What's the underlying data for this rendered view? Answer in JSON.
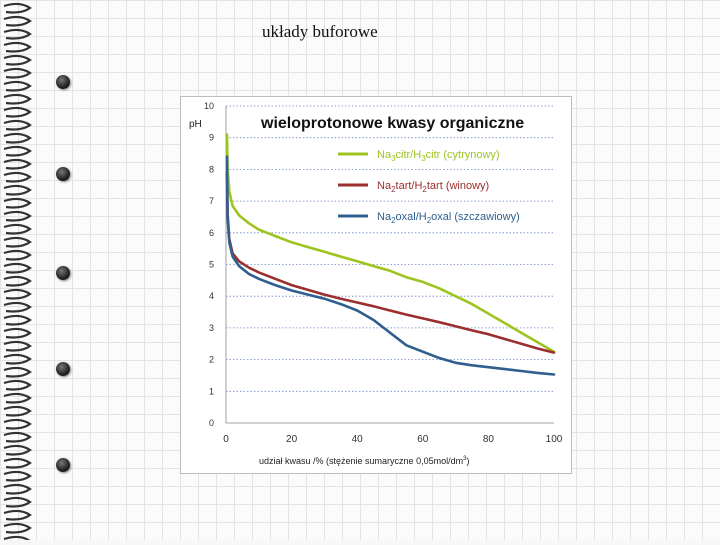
{
  "slide": {
    "title": "układy buforowe"
  },
  "icons": [
    "spiral-binding-icon",
    "bullet-point-icon"
  ],
  "colors": {
    "citrate": "#9dc41f",
    "tartrate": "#9b2f2f",
    "oxalate": "#2f5f8f",
    "gridline": "#6b85c8"
  },
  "chart_data": {
    "type": "line",
    "title": "wieloprotonowe kwasy organiczne",
    "ylabel": "pH",
    "xlabel_prefix": "udział kwasu /% (stężenie sumaryczne 0,05mol/dm",
    "xlabel_superscript": "3",
    "xlabel_suffix": ")",
    "xlim": [
      0,
      100
    ],
    "ylim": [
      0,
      10
    ],
    "xticks": [
      "0",
      "20",
      "40",
      "60",
      "80",
      "100"
    ],
    "yticks": [
      "0",
      "1",
      "2",
      "3",
      "4",
      "5",
      "6",
      "7",
      "8",
      "9",
      "10"
    ],
    "grid": "horizontal-dotted",
    "legend_position": "top-right",
    "series": [
      {
        "name_parts": [
          [
            "Na",
            false
          ],
          [
            "3",
            true
          ],
          [
            "citr/H",
            false
          ],
          [
            "3",
            true
          ],
          [
            "citr (cytrynowy)",
            false
          ]
        ],
        "color_key": "citrate",
        "x": [
          0.3,
          0.5,
          1,
          2,
          4,
          7,
          10,
          15,
          20,
          25,
          30,
          35,
          40,
          45,
          50,
          55,
          60,
          65,
          70,
          75,
          80,
          85,
          90,
          95,
          100
        ],
        "y": [
          9.1,
          8.0,
          7.3,
          6.85,
          6.55,
          6.3,
          6.1,
          5.9,
          5.7,
          5.55,
          5.4,
          5.25,
          5.1,
          4.95,
          4.8,
          4.6,
          4.45,
          4.25,
          4.0,
          3.75,
          3.45,
          3.15,
          2.85,
          2.55,
          2.25
        ]
      },
      {
        "name_parts": [
          [
            "Na",
            false
          ],
          [
            "2",
            true
          ],
          [
            "tart/H",
            false
          ],
          [
            "2",
            true
          ],
          [
            "tart (winowy)",
            false
          ]
        ],
        "color_key": "tartrate",
        "x": [
          0.3,
          0.5,
          1,
          2,
          4,
          7,
          10,
          15,
          20,
          25,
          30,
          35,
          40,
          45,
          50,
          55,
          60,
          65,
          70,
          75,
          80,
          85,
          90,
          95,
          100
        ],
        "y": [
          7.9,
          6.6,
          5.8,
          5.35,
          5.1,
          4.9,
          4.75,
          4.55,
          4.35,
          4.2,
          4.05,
          3.92,
          3.8,
          3.68,
          3.55,
          3.42,
          3.3,
          3.18,
          3.05,
          2.92,
          2.8,
          2.65,
          2.5,
          2.35,
          2.22
        ]
      },
      {
        "name_parts": [
          [
            "Na",
            false
          ],
          [
            "2",
            true
          ],
          [
            "oxal/H",
            false
          ],
          [
            "2",
            true
          ],
          [
            "oxal (szczawiowy)",
            false
          ]
        ],
        "color_key": "oxalate",
        "x": [
          0.3,
          0.5,
          1,
          2,
          4,
          7,
          10,
          15,
          20,
          25,
          30,
          35,
          40,
          45,
          50,
          55,
          60,
          65,
          70,
          75,
          80,
          85,
          90,
          95,
          100
        ],
        "y": [
          8.4,
          6.5,
          5.7,
          5.25,
          4.95,
          4.7,
          4.55,
          4.35,
          4.18,
          4.05,
          3.92,
          3.75,
          3.55,
          3.25,
          2.85,
          2.45,
          2.25,
          2.05,
          1.9,
          1.82,
          1.76,
          1.7,
          1.64,
          1.58,
          1.53
        ]
      }
    ]
  }
}
